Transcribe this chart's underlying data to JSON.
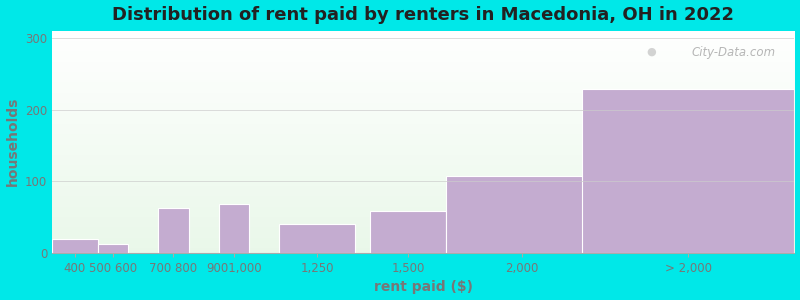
{
  "title": "Distribution of rent paid by renters in Macedonia, OH in 2022",
  "xlabel": "rent paid ($)",
  "ylabel": "households",
  "bar_labels": [
    "400",
    "500 600",
    "700 800",
    "9001,000",
    "1,250",
    "1,500",
    "2,000",
    "> 2,000"
  ],
  "bar_values": [
    20,
    12,
    62,
    68,
    40,
    58,
    107,
    228
  ],
  "bar_left_edges": [
    300,
    450,
    650,
    850,
    1050,
    1350,
    1600,
    2050
  ],
  "bar_widths": [
    150,
    100,
    100,
    100,
    250,
    250,
    500,
    700
  ],
  "bar_color": "#c4acd0",
  "bar_edgecolor": "#c4acd0",
  "background_outer": "#00e8e8",
  "ylim": [
    0,
    310
  ],
  "yticks": [
    0,
    100,
    200,
    300
  ],
  "title_fontsize": 13,
  "axis_label_fontsize": 10,
  "tick_fontsize": 8.5,
  "watermark_text": "City-Data.com",
  "grid_color": "#cccccc",
  "tick_label_color": "#777777",
  "title_color": "#222222",
  "axis_label_color": "#777777"
}
